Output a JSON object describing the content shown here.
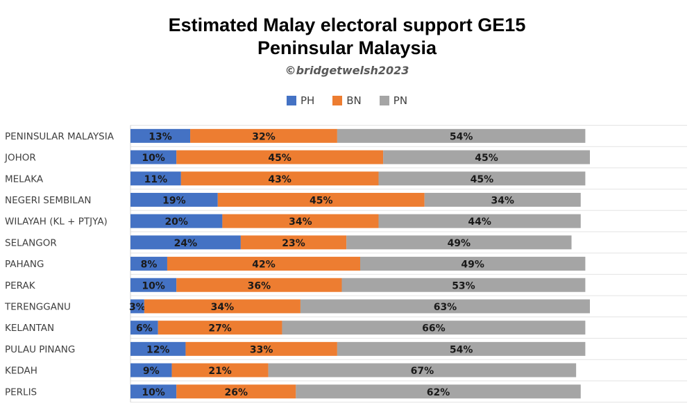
{
  "chart_data": {
    "type": "bar",
    "orientation": "horizontal",
    "stacked": true,
    "title": "Estimated Malay electoral support GE15",
    "title_line2": "Peninsular Malaysia",
    "subtitle": "©bridgetwelsh2023",
    "legend_position": "top",
    "categories": [
      "PENINSULAR MALAYSIA",
      "JOHOR",
      "MELAKA",
      "NEGERI SEMBILAN",
      "WILAYAH (KL + PTJYA)",
      "SELANGOR",
      "PAHANG",
      "PERAK",
      "TERENGGANU",
      "KELANTAN",
      "PULAU PINANG",
      "KEDAH",
      "PERLIS"
    ],
    "series": [
      {
        "name": "PH",
        "color": "#4472C4",
        "values": [
          13,
          10,
          11,
          19,
          20,
          24,
          8,
          10,
          3,
          6,
          12,
          9,
          10
        ],
        "labels": [
          "13%",
          "10%",
          "11%",
          "19%",
          "20%",
          "24%",
          "8%",
          "10%",
          "3%",
          "6%",
          "12%",
          "9%",
          "10%"
        ]
      },
      {
        "name": "BN",
        "color": "#ED7D31",
        "values": [
          32,
          45,
          43,
          45,
          34,
          23,
          42,
          36,
          34,
          27,
          33,
          21,
          26
        ],
        "labels": [
          "32%",
          "45%",
          "43%",
          "45%",
          "34%",
          "23%",
          "42%",
          "36%",
          "34%",
          "27%",
          "33%",
          "21%",
          "26%"
        ]
      },
      {
        "name": "PN",
        "color": "#A5A5A5",
        "values": [
          54,
          45,
          45,
          34,
          44,
          49,
          49,
          53,
          63,
          66,
          54,
          67,
          62
        ],
        "labels": [
          "54%",
          "45%",
          "45%",
          "34%",
          "44%",
          "49%",
          "49%",
          "53%",
          "63%",
          "66%",
          "54%",
          "67%",
          "62%"
        ]
      }
    ],
    "unit": "%",
    "grid": true
  }
}
